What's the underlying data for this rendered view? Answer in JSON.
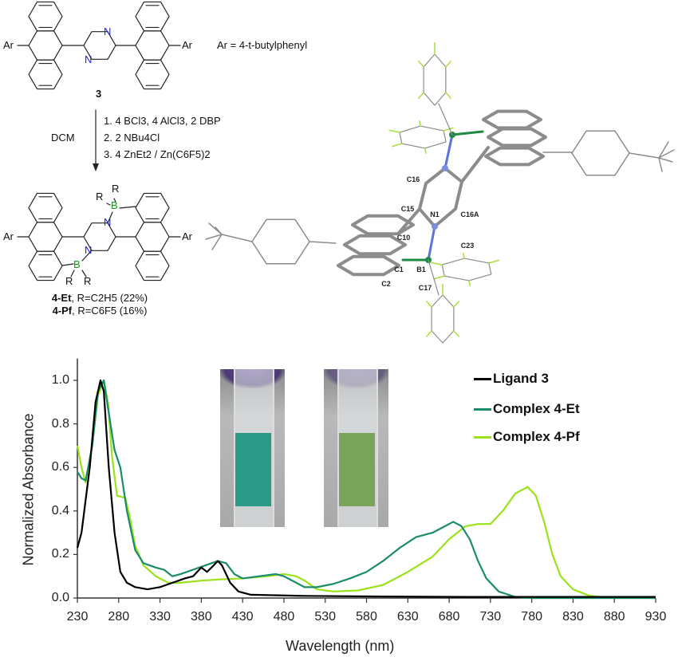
{
  "scheme": {
    "ar_label": "Ar",
    "ar_definition": "Ar = 4-t-butylphenyl",
    "n_label": "N",
    "b_label": "B",
    "r_label": "R",
    "compound_3": "3",
    "solvent": "DCM",
    "conditions": [
      "1. 4 BCl3, 4 AlCl3, 2 DBP",
      "2. 2 NBu4Cl",
      "3. 4 ZnEt2 / Zn(C6F5)2"
    ],
    "products": [
      {
        "name": "4-Et",
        "detail": ", R=C2H5 (22%)"
      },
      {
        "name": "4-Pf",
        "detail": ", R=C6F5 (16%)"
      }
    ]
  },
  "crystal_structure": {
    "atom_labels": [
      "C16",
      "C15",
      "N1",
      "C16A",
      "C10",
      "C23",
      "C1",
      "B1",
      "C2",
      "C17"
    ],
    "colors": {
      "carbon": "#8c8c8c",
      "nitrogen": "#7b8fe0",
      "boron": "#1f8a45",
      "fluorine": "#a8e03a"
    }
  },
  "chart_data": {
    "type": "line",
    "xlabel": "Wavelength (nm)",
    "ylabel": "Normalized Absorbance",
    "xlim": [
      230,
      930
    ],
    "ylim": [
      0,
      1.1
    ],
    "xticks": [
      230,
      280,
      330,
      380,
      430,
      480,
      530,
      580,
      630,
      680,
      730,
      780,
      830,
      880,
      930
    ],
    "yticks": [
      "0.0",
      "0.2",
      "0.4",
      "0.6",
      "0.8",
      "1.0"
    ],
    "grid": false,
    "legend_placement": "top-right",
    "series": [
      {
        "name": "Ligand 3",
        "color": "#000000",
        "x": [
          230,
          235,
          245,
          252,
          258,
          262,
          268,
          275,
          282,
          290,
          300,
          315,
          330,
          345,
          360,
          370,
          380,
          387,
          395,
          400,
          405,
          415,
          425,
          440,
          500,
          600,
          700,
          930
        ],
        "y": [
          0.23,
          0.3,
          0.6,
          0.9,
          1.0,
          0.95,
          0.6,
          0.3,
          0.12,
          0.07,
          0.05,
          0.04,
          0.05,
          0.07,
          0.09,
          0.1,
          0.14,
          0.12,
          0.15,
          0.17,
          0.15,
          0.07,
          0.03,
          0.015,
          0.01,
          0.007,
          0.005,
          0.005
        ]
      },
      {
        "name": "Complex 4-Et",
        "color": "#1a8c6c",
        "x": [
          230,
          235,
          240,
          248,
          255,
          262,
          268,
          275,
          282,
          290,
          300,
          310,
          325,
          335,
          345,
          355,
          370,
          385,
          400,
          410,
          420,
          430,
          450,
          470,
          480,
          490,
          505,
          520,
          540,
          560,
          580,
          600,
          620,
          640,
          660,
          675,
          685,
          695,
          705,
          715,
          725,
          740,
          760,
          780,
          930
        ],
        "y": [
          0.58,
          0.55,
          0.54,
          0.7,
          0.95,
          1.0,
          0.85,
          0.68,
          0.6,
          0.4,
          0.22,
          0.16,
          0.14,
          0.13,
          0.1,
          0.11,
          0.13,
          0.15,
          0.17,
          0.16,
          0.11,
          0.09,
          0.1,
          0.11,
          0.1,
          0.08,
          0.05,
          0.05,
          0.065,
          0.09,
          0.12,
          0.17,
          0.23,
          0.28,
          0.3,
          0.33,
          0.35,
          0.33,
          0.27,
          0.17,
          0.09,
          0.03,
          0.005,
          0,
          0
        ]
      },
      {
        "name": "Complex 4-Pf",
        "color": "#9be21a",
        "x": [
          230,
          235,
          240,
          248,
          255,
          262,
          267,
          272,
          278,
          288,
          293,
          300,
          310,
          325,
          340,
          355,
          380,
          400,
          430,
          460,
          480,
          495,
          505,
          520,
          540,
          570,
          600,
          630,
          660,
          680,
          700,
          715,
          730,
          745,
          760,
          775,
          785,
          795,
          805,
          815,
          830,
          850,
          870,
          930
        ],
        "y": [
          0.7,
          0.6,
          0.53,
          0.7,
          0.93,
          1.0,
          0.9,
          0.65,
          0.47,
          0.46,
          0.38,
          0.24,
          0.15,
          0.1,
          0.07,
          0.07,
          0.08,
          0.085,
          0.09,
          0.1,
          0.11,
          0.1,
          0.08,
          0.04,
          0.03,
          0.035,
          0.06,
          0.12,
          0.19,
          0.27,
          0.33,
          0.34,
          0.34,
          0.4,
          0.48,
          0.51,
          0.47,
          0.35,
          0.2,
          0.1,
          0.04,
          0.01,
          0.003,
          0
        ]
      }
    ],
    "inset_photos": [
      {
        "solution_color": "#2a9a86"
      },
      {
        "solution_color": "#7aa45a"
      }
    ]
  }
}
